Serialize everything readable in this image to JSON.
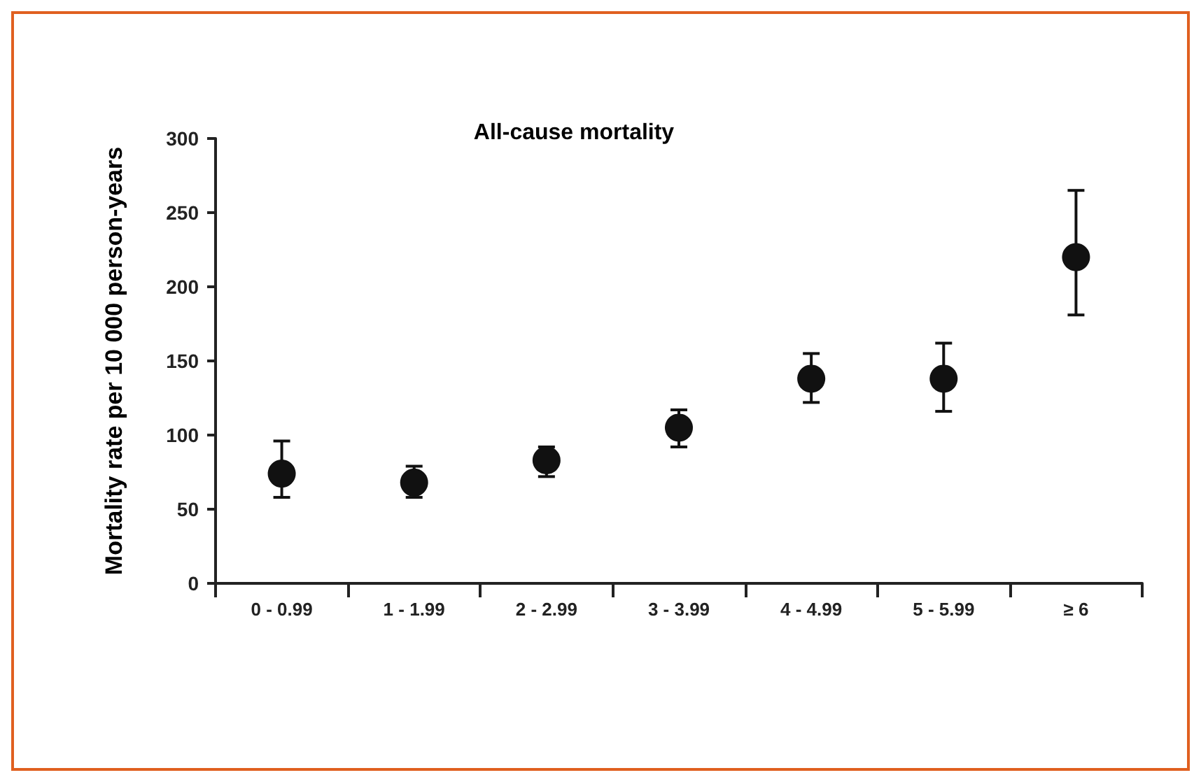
{
  "chart_data": {
    "type": "scatter",
    "title": "All-cause mortality",
    "ylabel": "Mortality rate per 10 000 person-years",
    "categories": [
      "0 - 0.99",
      "1 - 1.99",
      "2 - 2.99",
      "3 - 3.99",
      "4 - 4.99",
      "5 - 5.99",
      "≥ 6"
    ],
    "values": [
      74,
      68,
      83,
      105,
      138,
      138,
      220
    ],
    "errors": [
      [
        58,
        96
      ],
      [
        58,
        79
      ],
      [
        72,
        92
      ],
      [
        92,
        117
      ],
      [
        122,
        155
      ],
      [
        116,
        162
      ],
      [
        181,
        265
      ]
    ],
    "color": "#111111",
    "marker": "circle",
    "grid": false,
    "ylim": [
      0,
      300
    ],
    "yticks": [
      0,
      50,
      100,
      150,
      200,
      250,
      300
    ]
  }
}
